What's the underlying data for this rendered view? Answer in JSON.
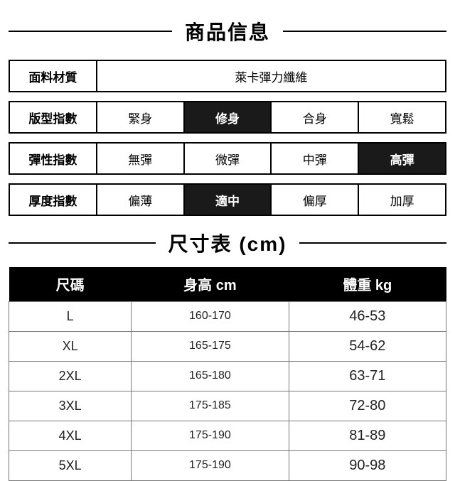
{
  "titles": {
    "info": "商品信息",
    "size_chart": "尺寸表 (cm)"
  },
  "material": {
    "label": "面料材質",
    "value": "萊卡彈力纖維"
  },
  "fit": {
    "label": "版型指數",
    "options": [
      "緊身",
      "修身",
      "合身",
      "寬鬆"
    ],
    "selected_index": 1
  },
  "stretch": {
    "label": "彈性指數",
    "options": [
      "無彈",
      "微彈",
      "中彈",
      "高彈"
    ],
    "selected_index": 3
  },
  "thickness": {
    "label": "厚度指數",
    "options": [
      "偏薄",
      "適中",
      "偏厚",
      "加厚"
    ],
    "selected_index": 1
  },
  "size_headers": {
    "size": "尺碼",
    "height": "身高  cm",
    "weight": "體重  kg"
  },
  "sizes": [
    {
      "size": "L",
      "height": "160-170",
      "weight": "46-53"
    },
    {
      "size": "XL",
      "height": "165-175",
      "weight": "54-62"
    },
    {
      "size": "2XL",
      "height": "165-180",
      "weight": "63-71"
    },
    {
      "size": "3XL",
      "height": "175-185",
      "weight": "72-80"
    },
    {
      "size": "4XL",
      "height": "175-190",
      "weight": "81-89"
    },
    {
      "size": "5XL",
      "height": "175-190",
      "weight": "90-98"
    }
  ]
}
